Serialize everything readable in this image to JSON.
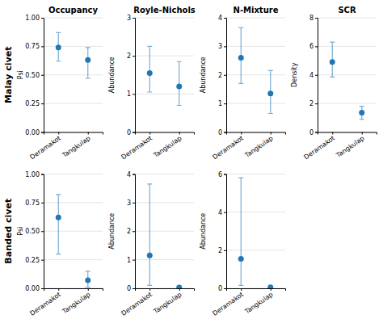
{
  "chart_data": [
    {
      "type": "scatter",
      "title": "Occupancy",
      "y_label": "Psi",
      "annotations": [
        "Malay civet"
      ],
      "categories": [
        "Deramakot",
        "Tangkulap"
      ],
      "values": [
        0.74,
        0.63
      ],
      "lower": [
        0.62,
        0.47
      ],
      "upper": [
        0.87,
        0.74
      ],
      "ylim": [
        0.0,
        1.0
      ],
      "yticks": [
        {
          "value": 0.0,
          "label": "0.00"
        },
        {
          "value": 0.25,
          "label": "0.25"
        },
        {
          "value": 0.5,
          "label": "0.50"
        },
        {
          "value": 0.75,
          "label": "0.75"
        },
        {
          "value": 1.0,
          "label": "1.00"
        }
      ],
      "grid": true
    },
    {
      "type": "scatter",
      "title": "Royle-Nichols",
      "y_label": "Abundance",
      "categories": [
        "Deramakot",
        "Tangkulap"
      ],
      "values": [
        1.55,
        1.2
      ],
      "lower": [
        1.05,
        0.7
      ],
      "upper": [
        2.25,
        1.85
      ],
      "ylim": [
        0.0,
        3.0
      ],
      "yticks": [
        0,
        1,
        2,
        3
      ],
      "grid": true
    },
    {
      "type": "scatter",
      "title": "N-Mixture",
      "y_label": "Abundance",
      "categories": [
        "Deramakot",
        "Tangkulap"
      ],
      "values": [
        2.6,
        1.35
      ],
      "lower": [
        1.7,
        0.65
      ],
      "upper": [
        3.65,
        2.15
      ],
      "ylim": [
        0.0,
        4.0
      ],
      "yticks": [
        0,
        1,
        2,
        3,
        4
      ],
      "grid": true
    },
    {
      "type": "scatter",
      "title": "SCR",
      "y_label": "Density",
      "categories": [
        "Deramakot",
        "Tangkulap"
      ],
      "values": [
        4.9,
        1.35
      ],
      "lower": [
        3.85,
        0.9
      ],
      "upper": [
        6.3,
        1.8
      ],
      "ylim": [
        0.0,
        8.0
      ],
      "yticks": [
        0,
        2,
        4,
        6,
        8
      ],
      "grid": true
    },
    {
      "type": "scatter",
      "y_label": "Psi",
      "annotations": [
        "Banded civet"
      ],
      "categories": [
        "Deramakot",
        "Tangkulap"
      ],
      "values": [
        0.62,
        0.07
      ],
      "lower": [
        0.3,
        0.01
      ],
      "upper": [
        0.82,
        0.15
      ],
      "ylim": [
        0.0,
        1.0
      ],
      "yticks": [
        {
          "value": 0.0,
          "label": "0.00"
        },
        {
          "value": 0.25,
          "label": "0.25"
        },
        {
          "value": 0.5,
          "label": "0.50"
        },
        {
          "value": 0.75,
          "label": "0.75"
        },
        {
          "value": 1.0,
          "label": "1.00"
        }
      ],
      "grid": true
    },
    {
      "type": "scatter",
      "y_label": "Abundance",
      "categories": [
        "Deramakot",
        "Tangkulap"
      ],
      "values": [
        1.15,
        0.03
      ],
      "lower": [
        0.1,
        0.01
      ],
      "upper": [
        3.65,
        0.08
      ],
      "ylim": [
        0.0,
        4.0
      ],
      "yticks": [
        0,
        1,
        2,
        3,
        4
      ],
      "grid": true
    },
    {
      "type": "scatter",
      "y_label": "Abundance",
      "categories": [
        "Deramakot",
        "Tangkulap"
      ],
      "values": [
        1.55,
        0.05
      ],
      "lower": [
        0.15,
        0.02
      ],
      "upper": [
        5.8,
        0.12
      ],
      "ylim": [
        0.0,
        6.0
      ],
      "yticks": [
        0,
        2,
        4,
        6
      ],
      "grid": true
    }
  ]
}
